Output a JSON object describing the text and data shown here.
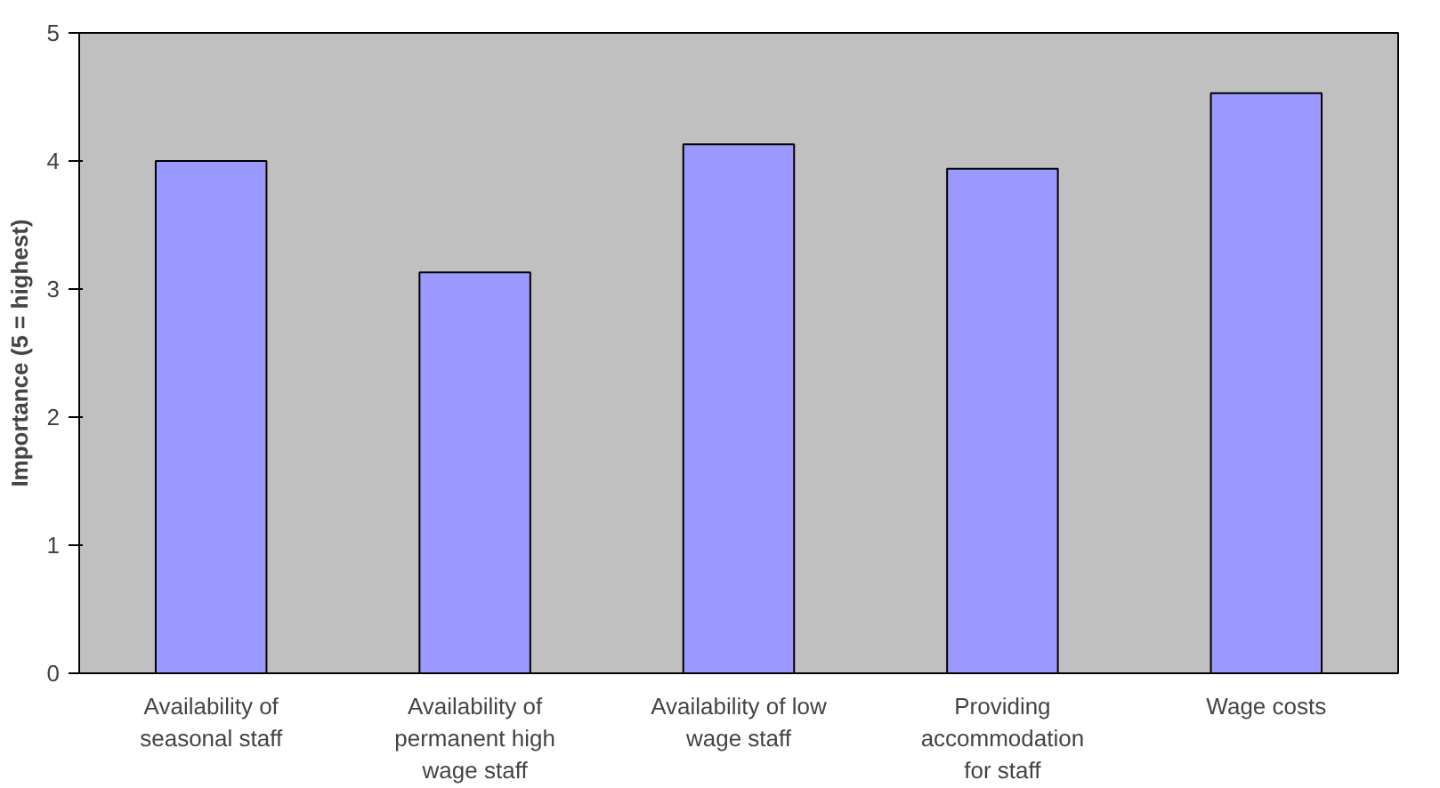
{
  "chart_data": {
    "type": "bar",
    "ylabel": "Importance (5 = highest)",
    "categories": [
      "Availability of\nseasonal staff",
      "Availability of\npermanent high\nwage staff",
      "Availability of low\nwage staff",
      "Providing\naccommodation\nfor staff",
      "Wage costs"
    ],
    "values": [
      4.0,
      3.13,
      4.13,
      3.94,
      4.53
    ],
    "color": "#9999ff",
    "ylim": [
      0,
      5
    ],
    "yticks": [
      0,
      1,
      2,
      3,
      4,
      5
    ],
    "grid": false
  }
}
